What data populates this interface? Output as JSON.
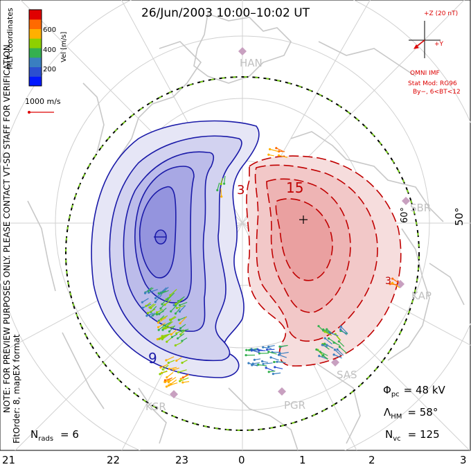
{
  "title": "26/Jun/2003 10:00–10:02 UT",
  "coordinates_label": "MLT coordinates",
  "colorbar": {
    "axis_label": "Vel [m/s]",
    "ticks": [
      "600",
      "400",
      "200"
    ],
    "colors": [
      "#e00000",
      "#ff6a00",
      "#ffb000",
      "#8ed000",
      "#35b050",
      "#3a7fc0",
      "#2b4fd0",
      "#0018ff"
    ]
  },
  "vector_scale_label": "1000 m/s",
  "note_line1": "NOTE: FOR PREVIEW PURPOSES ONLY. PLEASE CONTACT VT-SD STAFF FOR VERIFICATION.",
  "note_line2": "FitOrder: 8, mapEX format",
  "imf": {
    "z_label": "+Z (20 nT)",
    "y_label": "+Y",
    "source_label": "OMNI IMF",
    "model_label": "Stat Mod: RG96",
    "model_params": "By−, 6<BT<12"
  },
  "latitude_labels": [
    "60°",
    "50°"
  ],
  "stations": [
    "HAN",
    "SBR",
    "KAP",
    "SAS",
    "PGR",
    "KSR"
  ],
  "contour_labels": {
    "negative": "9",
    "positive_a": "15",
    "positive_b": "3",
    "positive_c": "3"
  },
  "stats": {
    "phi_pc_symbol": "Φ",
    "phi_pc_sub": "pc",
    "phi_pc_value": "= 48 kV",
    "lambda_hm_symbol": "Λ",
    "lambda_hm_sub": "HM",
    "lambda_hm_value": "= 58°",
    "n_vc_symbol": "N",
    "n_vc_sub": "vc",
    "n_vc_value": "= 125",
    "n_rads_symbol": "N",
    "n_rads_sub": "rads",
    "n_rads_value": "= 6"
  },
  "mlt_ticks": [
    "21",
    "22",
    "23",
    "0",
    "1",
    "2",
    "3"
  ],
  "colors": {
    "negative_cell": "#1a1aa8",
    "positive_cell": "#c00000",
    "boundary": "#000000",
    "boundary_dash": "#7ed321",
    "coastline": "#c8c8c8",
    "station": "#c8a0c0"
  }
}
